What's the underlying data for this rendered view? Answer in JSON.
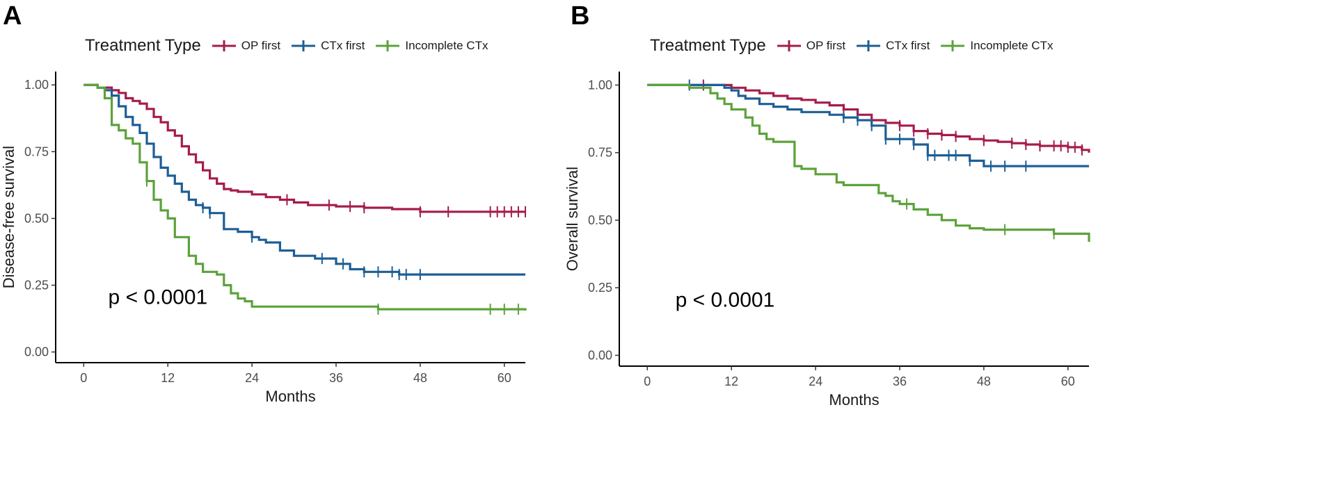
{
  "legend_title": "Treatment Type",
  "series_colors": {
    "op": "#a51c4a",
    "ctx": "#1d5e96",
    "inc": "#5ca23b"
  },
  "series_labels": {
    "op": "OP first",
    "ctx": "CTx first",
    "inc": "Incomplete CTx"
  },
  "chart_data": [
    {
      "type": "line",
      "panel": "A",
      "xlabel": "Months",
      "ylabel": "Disease-free survival",
      "xlim": [
        -4,
        63
      ],
      "ylim": [
        -0.04,
        1.05
      ],
      "x_ticks": [
        0,
        12,
        24,
        36,
        48,
        60
      ],
      "x_tick_labels": [
        "0",
        "12",
        "24",
        "36",
        "48",
        "60"
      ],
      "y_ticks": [
        0,
        0.25,
        0.5,
        0.75,
        1
      ],
      "y_tick_labels": [
        "0.00",
        "0.25",
        "0.50",
        "0.75",
        "1.00"
      ],
      "annotation": "p < 0.0001",
      "annotation_pos": [
        3.5,
        0.18
      ],
      "series": [
        {
          "name": "OP first",
          "key": "op",
          "x": [
            0,
            2,
            4,
            5,
            6,
            7,
            8,
            9,
            10,
            11,
            12,
            13,
            14,
            15,
            16,
            17,
            18,
            19,
            20,
            21,
            22,
            24,
            26,
            28,
            30,
            32,
            36,
            40,
            44,
            48,
            63
          ],
          "y": [
            1.0,
            0.99,
            0.98,
            0.97,
            0.95,
            0.94,
            0.93,
            0.91,
            0.88,
            0.86,
            0.83,
            0.81,
            0.77,
            0.74,
            0.71,
            0.68,
            0.65,
            0.63,
            0.61,
            0.605,
            0.6,
            0.59,
            0.58,
            0.57,
            0.56,
            0.55,
            0.545,
            0.54,
            0.535,
            0.525,
            0.525
          ],
          "censor_x": [
            29,
            35,
            38,
            40,
            48,
            52,
            58,
            59,
            60,
            61,
            62,
            63
          ]
        },
        {
          "name": "CTx first",
          "key": "ctx",
          "x": [
            0,
            2,
            3,
            4,
            5,
            6,
            7,
            8,
            9,
            10,
            11,
            12,
            13,
            14,
            15,
            16,
            17,
            18,
            20,
            22,
            24,
            25,
            26,
            28,
            30,
            33,
            36,
            38,
            40,
            45,
            63
          ],
          "y": [
            1.0,
            0.99,
            0.98,
            0.96,
            0.92,
            0.88,
            0.85,
            0.82,
            0.78,
            0.73,
            0.69,
            0.66,
            0.63,
            0.6,
            0.57,
            0.55,
            0.54,
            0.52,
            0.46,
            0.45,
            0.43,
            0.42,
            0.41,
            0.38,
            0.36,
            0.35,
            0.33,
            0.31,
            0.3,
            0.29,
            0.29
          ],
          "censor_x": [
            4,
            17,
            18,
            24,
            34,
            37,
            40,
            42,
            44,
            45,
            46,
            48
          ]
        },
        {
          "name": "Incomplete CTx",
          "key": "inc",
          "x": [
            0,
            2,
            3,
            4,
            5,
            6,
            7,
            8,
            9,
            10,
            11,
            12,
            13,
            15,
            16,
            17,
            19,
            20,
            21,
            22,
            23,
            24,
            42,
            63
          ],
          "y": [
            1.0,
            0.99,
            0.95,
            0.85,
            0.83,
            0.8,
            0.78,
            0.71,
            0.64,
            0.57,
            0.53,
            0.5,
            0.43,
            0.36,
            0.33,
            0.3,
            0.29,
            0.25,
            0.22,
            0.2,
            0.19,
            0.17,
            0.16,
            0.155
          ],
          "censor_x": [
            9,
            42,
            58,
            60,
            62
          ]
        }
      ]
    },
    {
      "type": "line",
      "panel": "B",
      "xlabel": "Months",
      "ylabel": "Overall survival",
      "xlim": [
        -4,
        63
      ],
      "ylim": [
        -0.04,
        1.05
      ],
      "x_ticks": [
        0,
        12,
        24,
        36,
        48,
        60
      ],
      "x_tick_labels": [
        "0",
        "12",
        "24",
        "36",
        "48",
        "60"
      ],
      "y_ticks": [
        0,
        0.25,
        0.5,
        0.75,
        1
      ],
      "y_tick_labels": [
        "0.00",
        "0.25",
        "0.50",
        "0.75",
        "1.00"
      ],
      "annotation": "p < 0.0001",
      "annotation_pos": [
        4,
        0.18
      ],
      "series": [
        {
          "name": "OP first",
          "key": "op",
          "x": [
            0,
            8,
            12,
            14,
            16,
            18,
            20,
            22,
            24,
            26,
            28,
            30,
            32,
            34,
            36,
            38,
            40,
            42,
            44,
            46,
            48,
            50,
            52,
            54,
            56,
            58,
            60,
            62,
            63
          ],
          "y": [
            1.0,
            1.0,
            0.99,
            0.98,
            0.97,
            0.96,
            0.95,
            0.945,
            0.935,
            0.925,
            0.91,
            0.89,
            0.87,
            0.86,
            0.85,
            0.83,
            0.82,
            0.815,
            0.81,
            0.8,
            0.795,
            0.79,
            0.785,
            0.78,
            0.775,
            0.775,
            0.77,
            0.76,
            0.75
          ],
          "censor_x": [
            8,
            28,
            36,
            38,
            40,
            42,
            44,
            48,
            52,
            54,
            56,
            58,
            59,
            60,
            61,
            62
          ]
        },
        {
          "name": "CTx first",
          "key": "ctx",
          "x": [
            0,
            10,
            11,
            12,
            13,
            14,
            16,
            18,
            20,
            22,
            26,
            28,
            30,
            32,
            34,
            38,
            40,
            46,
            48,
            63
          ],
          "y": [
            1.0,
            1.0,
            0.99,
            0.98,
            0.96,
            0.95,
            0.93,
            0.92,
            0.91,
            0.9,
            0.89,
            0.88,
            0.87,
            0.85,
            0.8,
            0.78,
            0.74,
            0.72,
            0.7,
            0.7
          ],
          "censor_x": [
            6,
            28,
            30,
            32,
            34,
            36,
            38,
            40,
            41,
            43,
            44,
            46,
            49,
            51,
            54
          ]
        },
        {
          "name": "Incomplete CTx",
          "key": "inc",
          "x": [
            0,
            6,
            9,
            10,
            11,
            12,
            14,
            15,
            16,
            17,
            18,
            21,
            22,
            24,
            27,
            28,
            33,
            34,
            35,
            36,
            38,
            40,
            42,
            44,
            46,
            48,
            58,
            63
          ],
          "y": [
            1.0,
            0.99,
            0.97,
            0.95,
            0.93,
            0.91,
            0.88,
            0.85,
            0.82,
            0.8,
            0.79,
            0.7,
            0.69,
            0.67,
            0.64,
            0.63,
            0.6,
            0.59,
            0.57,
            0.56,
            0.54,
            0.52,
            0.5,
            0.48,
            0.47,
            0.465,
            0.45,
            0.42
          ],
          "censor_x": [
            37,
            51,
            58
          ]
        }
      ]
    }
  ]
}
